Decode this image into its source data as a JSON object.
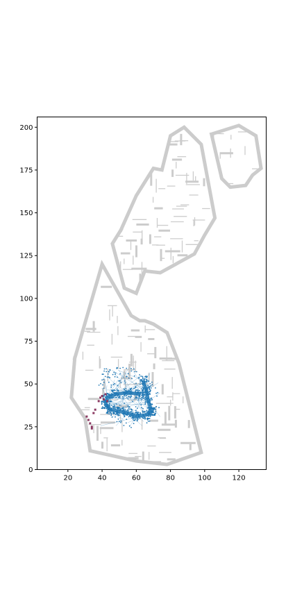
{
  "chart_data": {
    "type": "scatter",
    "title": "",
    "xlabel": "",
    "ylabel": "",
    "xlim": [
      2,
      136
    ],
    "ylim": [
      0,
      206
    ],
    "x_ticks": [
      "20",
      "40",
      "60",
      "80",
      "100",
      "120"
    ],
    "y_ticks": [
      "0",
      "25",
      "50",
      "75",
      "100",
      "125",
      "150",
      "175",
      "200"
    ],
    "grid": false,
    "legend": "none",
    "colors": {
      "map": "#cccccc",
      "trajectory": "#1f77b4",
      "markers": "#8b3a62"
    },
    "map_outline": {
      "lower_building": [
        [
          24,
          65
        ],
        [
          40,
          120
        ],
        [
          57,
          90
        ],
        [
          62,
          87
        ],
        [
          65,
          87
        ],
        [
          70,
          85
        ],
        [
          78,
          80
        ],
        [
          85,
          62
        ],
        [
          98,
          10
        ],
        [
          78,
          3
        ],
        [
          60,
          5
        ],
        [
          33,
          11
        ],
        [
          30,
          30
        ],
        [
          22,
          42
        ],
        [
          24,
          65
        ]
      ],
      "middle_building": [
        [
          51,
          140
        ],
        [
          60,
          160
        ],
        [
          70,
          176
        ],
        [
          75,
          175
        ],
        [
          80,
          195
        ],
        [
          88,
          200
        ],
        [
          98,
          190
        ],
        [
          106,
          147
        ],
        [
          100,
          137
        ],
        [
          94,
          126
        ],
        [
          74,
          115
        ],
        [
          65,
          116
        ],
        [
          60,
          103
        ],
        [
          53,
          106
        ],
        [
          46,
          132
        ],
        [
          51,
          140
        ]
      ],
      "right_building": [
        [
          104,
          196
        ],
        [
          120,
          201
        ],
        [
          130,
          195
        ],
        [
          133,
          176
        ],
        [
          128,
          172
        ],
        [
          124,
          166
        ],
        [
          115,
          165
        ],
        [
          110,
          170
        ],
        [
          104,
          196
        ]
      ]
    },
    "trajectory_hull": [
      [
        39,
        59
      ],
      [
        52,
        60
      ],
      [
        60,
        59
      ],
      [
        64,
        55
      ],
      [
        71,
        50
      ],
      [
        74,
        42
      ],
      [
        74,
        35
      ],
      [
        72,
        32
      ],
      [
        67,
        26
      ],
      [
        60,
        24
      ],
      [
        52,
        25
      ],
      [
        48,
        28
      ],
      [
        42,
        34
      ],
      [
        40,
        41
      ],
      [
        38,
        50
      ],
      [
        39,
        59
      ]
    ],
    "trajectory_dense": [
      [
        64,
        52
      ],
      [
        66,
        46
      ],
      [
        67,
        40
      ],
      [
        69,
        34
      ],
      [
        66,
        32
      ],
      [
        60,
        31
      ],
      [
        55,
        33
      ],
      [
        50,
        34
      ],
      [
        45,
        35
      ],
      [
        42,
        38
      ],
      [
        43,
        42
      ],
      [
        48,
        44
      ],
      [
        55,
        45
      ],
      [
        62,
        44
      ]
    ],
    "markers": [
      [
        31,
        31
      ],
      [
        32,
        29
      ],
      [
        33,
        27
      ],
      [
        34,
        25
      ],
      [
        34,
        24
      ],
      [
        35,
        33
      ],
      [
        36,
        35
      ],
      [
        38,
        40
      ],
      [
        39,
        42
      ],
      [
        40,
        43
      ],
      [
        41,
        41
      ],
      [
        42,
        44
      ],
      [
        43,
        40
      ]
    ]
  }
}
